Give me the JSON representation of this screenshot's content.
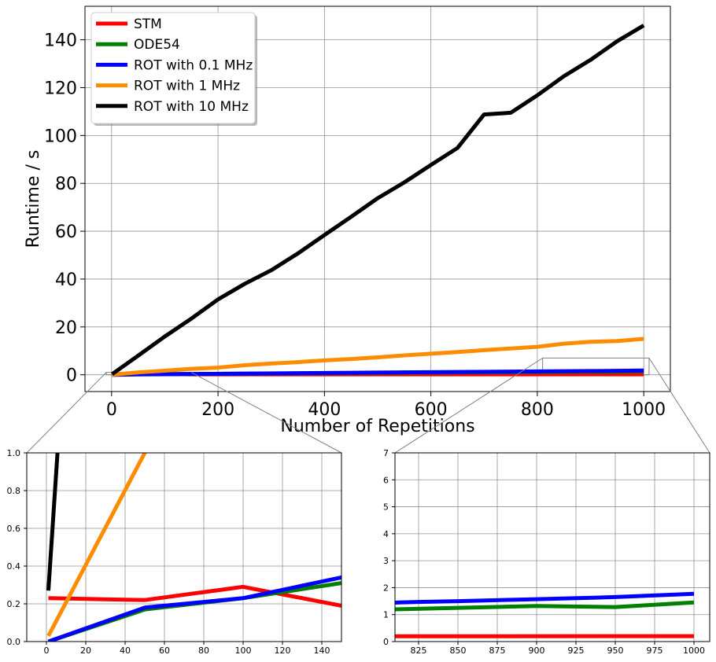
{
  "chart_data": [
    {
      "type": "line",
      "title": "",
      "xlabel": "Number of Repetitions",
      "ylabel": "Runtime / s",
      "xlim": [
        -50,
        1050
      ],
      "ylim": [
        -7,
        154
      ],
      "xticks": [
        0,
        200,
        400,
        600,
        800,
        1000
      ],
      "yticks": [
        0,
        20,
        40,
        60,
        80,
        100,
        120,
        140
      ],
      "grid": true,
      "legend_position": "top-left",
      "series": [
        {
          "name": "STM",
          "color": "#ff0000",
          "x": [
            1,
            50,
            100,
            150,
            1000
          ],
          "y": [
            0.23,
            0.22,
            0.29,
            0.19,
            0.2
          ]
        },
        {
          "name": "ODE54",
          "color": "#008000",
          "x": [
            1,
            50,
            100,
            150,
            850,
            900,
            950,
            1000
          ],
          "y": [
            0.0,
            0.17,
            0.23,
            0.31,
            1.25,
            1.32,
            1.28,
            1.45
          ]
        },
        {
          "name": "ROT with 0.1 MHz",
          "color": "#0000ff",
          "x": [
            1,
            50,
            100,
            150,
            825,
            850,
            900,
            950,
            1000
          ],
          "y": [
            0.0,
            0.18,
            0.23,
            0.34,
            1.47,
            1.5,
            1.57,
            1.65,
            1.77
          ]
        },
        {
          "name": "ROT with 1 MHz",
          "color": "#ff8c00",
          "x": [
            1,
            50,
            100,
            150,
            200,
            250,
            300,
            350,
            400,
            450,
            500,
            550,
            600,
            650,
            700,
            750,
            800,
            850,
            900,
            950,
            1000
          ],
          "y": [
            0.03,
            1.0,
            1.7,
            2.5,
            3.0,
            4.0,
            4.7,
            5.3,
            6.0,
            6.6,
            7.3,
            8.1,
            8.8,
            9.5,
            10.3,
            11.0,
            11.7,
            13.0,
            13.8,
            14.1,
            15.0
          ]
        },
        {
          "name": "ROT with 10 MHz",
          "color": "#000000",
          "x": [
            1,
            50,
            100,
            150,
            200,
            250,
            300,
            350,
            400,
            450,
            500,
            550,
            600,
            650,
            700,
            750,
            800,
            850,
            900,
            950,
            1000
          ],
          "y": [
            0.27,
            8.0,
            16.0,
            23.5,
            31.5,
            38.0,
            43.7,
            50.7,
            58.4,
            66.0,
            73.8,
            80.4,
            87.7,
            94.8,
            108.8,
            109.5,
            116.8,
            124.8,
            131.6,
            139.4,
            146.0
          ]
        }
      ]
    },
    {
      "type": "line",
      "title": "",
      "xlim": [
        -10,
        150
      ],
      "ylim": [
        0,
        1.0
      ],
      "xticks": [
        0,
        20,
        40,
        60,
        80,
        100,
        120,
        140
      ],
      "yticks": [
        0.0,
        0.2,
        0.4,
        0.6,
        0.8,
        1.0
      ],
      "ytick_labels": [
        "0.0",
        "0.2",
        "0.4",
        "0.6",
        "0.8",
        "1.0"
      ],
      "grid": true,
      "legend_position": "none",
      "zoom_of": "main"
    },
    {
      "type": "line",
      "title": "",
      "xlim": [
        810,
        1010
      ],
      "ylim": [
        0,
        7
      ],
      "xticks": [
        825,
        850,
        875,
        900,
        925,
        950,
        975,
        1000
      ],
      "yticks": [
        0,
        1,
        2,
        3,
        4,
        5,
        6,
        7
      ],
      "grid": true,
      "legend_position": "none",
      "zoom_of": "main"
    }
  ]
}
